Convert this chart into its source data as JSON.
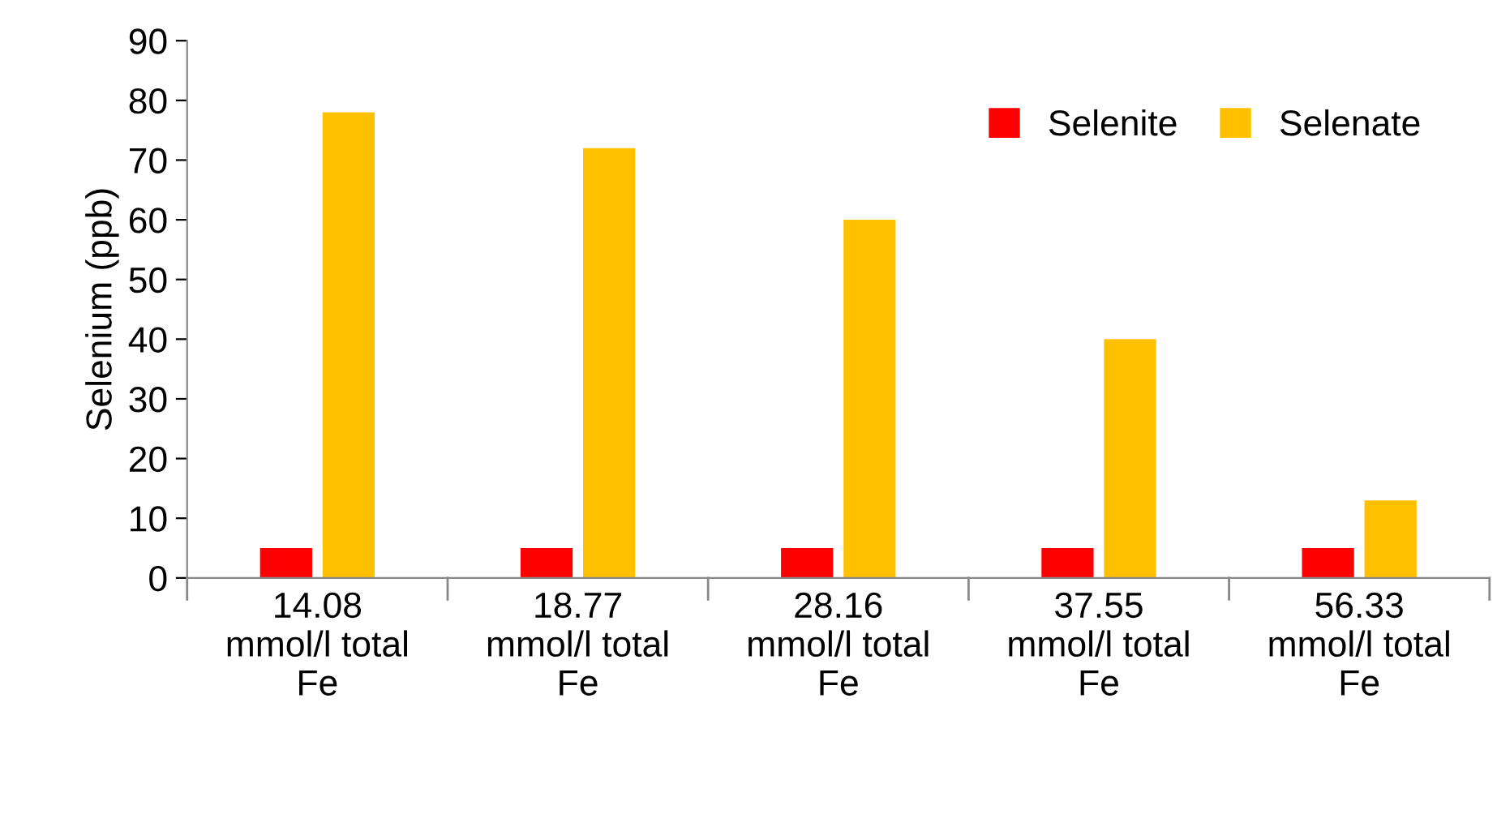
{
  "chart_data": {
    "type": "bar",
    "ylabel": "Selenium (ppb)",
    "categories": [
      "14.08\nmmol/l total\nFe",
      "18.77\nmmol/l total\nFe",
      "28.16\nmmol/l total\nFe",
      "37.55\nmmol/l total\nFe",
      "56.33\nmmol/l total\nFe"
    ],
    "series": [
      {
        "name": "Selenite",
        "color": "#ff0000",
        "values": [
          5,
          5,
          5,
          5,
          5
        ]
      },
      {
        "name": "Selenate",
        "color": "#ffc000",
        "values": [
          78,
          72,
          60,
          40,
          13
        ]
      }
    ],
    "ylim": [
      0,
      90
    ],
    "yticks": [
      0,
      10,
      20,
      30,
      40,
      50,
      60,
      70,
      80,
      90
    ],
    "grid": false,
    "legend": "top right"
  }
}
